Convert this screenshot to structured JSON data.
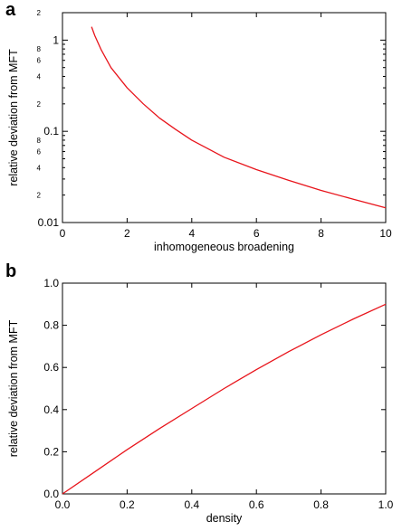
{
  "panel_labels": {
    "a": "a",
    "b": "b"
  },
  "chart_data": [
    {
      "type": "line",
      "panel": "a",
      "xlabel": "inhomogeneous broadening",
      "ylabel": "relative deviation from MFT",
      "xlim": [
        0,
        10
      ],
      "ylim": [
        0.01,
        2
      ],
      "yscale": "log",
      "grid": false,
      "x_ticks": [
        0,
        2,
        4,
        6,
        8,
        10
      ],
      "x_tick_labels": [
        "0",
        "2",
        "4",
        "6",
        "8",
        "10"
      ],
      "y_major_ticks": [
        0.01,
        0.1,
        1
      ],
      "y_major_labels": [
        "0.01",
        "0.1",
        "1"
      ],
      "y_minor_labels": [
        {
          "value": 0.02,
          "label": "2"
        },
        {
          "value": 0.04,
          "label": "4"
        },
        {
          "value": 0.06,
          "label": "6"
        },
        {
          "value": 0.08,
          "label": "8"
        },
        {
          "value": 0.2,
          "label": "2"
        },
        {
          "value": 0.4,
          "label": "4"
        },
        {
          "value": 0.6,
          "label": "6"
        },
        {
          "value": 0.8,
          "label": "8"
        },
        {
          "value": 2,
          "label": "2"
        }
      ],
      "series": [
        {
          "color": "#e8141b",
          "x": [
            0.9,
            1.0,
            1.2,
            1.5,
            2.0,
            2.5,
            3.0,
            3.5,
            4.0,
            5.0,
            6.0,
            7.0,
            8.0,
            9.0,
            10.0
          ],
          "y": [
            1.4,
            1.12,
            0.78,
            0.5,
            0.3,
            0.2,
            0.14,
            0.105,
            0.08,
            0.052,
            0.038,
            0.029,
            0.0225,
            0.018,
            0.0145
          ]
        }
      ]
    },
    {
      "type": "line",
      "panel": "b",
      "xlabel": "density",
      "ylabel": "relative deviation from MFT",
      "xlim": [
        0,
        1
      ],
      "ylim": [
        0,
        1
      ],
      "grid": false,
      "x_ticks": [
        0,
        0.2,
        0.4,
        0.6,
        0.8,
        1.0
      ],
      "x_tick_labels": [
        "0.0",
        "0.2",
        "0.4",
        "0.6",
        "0.8",
        "1.0"
      ],
      "y_ticks": [
        0,
        0.2,
        0.4,
        0.6,
        0.8,
        1.0
      ],
      "y_tick_labels": [
        "0.0",
        "0.2",
        "0.4",
        "0.6",
        "0.8",
        "1.0"
      ],
      "series": [
        {
          "color": "#e8141b",
          "x": [
            0.0,
            0.1,
            0.2,
            0.3,
            0.4,
            0.5,
            0.6,
            0.7,
            0.8,
            0.9,
            1.0
          ],
          "y": [
            0.0,
            0.105,
            0.21,
            0.31,
            0.405,
            0.5,
            0.59,
            0.675,
            0.755,
            0.83,
            0.9
          ]
        }
      ]
    }
  ]
}
